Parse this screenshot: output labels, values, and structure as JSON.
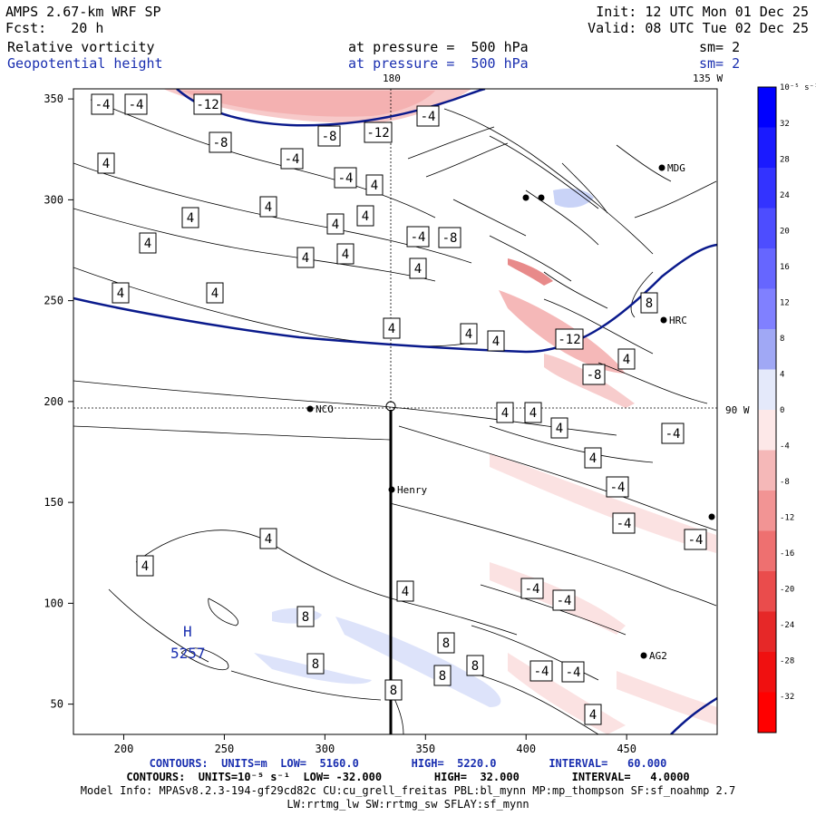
{
  "header": {
    "model_line": "AMPS 2.67-km WRF SP",
    "fcst_line": "Fcst:   20 h",
    "init_line": "Init: 12 UTC Mon 01 Dec 25",
    "valid_line": "Valid: 08 UTC Tue 02 Dec 25",
    "field1": "Relative vorticity",
    "field1_level": "at pressure =  500 hPa",
    "field1_sm": "sm= 2",
    "field2": "Geopotential height",
    "field2_level": "at pressure =  500 hPa",
    "field2_sm": "sm= 2"
  },
  "map": {
    "lon_label_180": "180",
    "lon_label_135w": "135 W",
    "lat_label_90w": "90 W",
    "x_ticks": [
      "200",
      "250",
      "300",
      "350",
      "400",
      "450"
    ],
    "y_ticks": [
      "350",
      "300",
      "250",
      "200",
      "150",
      "100",
      "50"
    ],
    "stations": [
      "NCO",
      "Henry",
      "HRC",
      "AG2",
      "MDG"
    ],
    "high_label": "H",
    "high_value": "5257",
    "contour_labels": [
      "-4",
      "-4",
      "-12",
      "-8",
      "-8",
      "-12",
      "-4",
      "-4",
      "-4",
      "4",
      "4",
      "4",
      "4",
      "4",
      "4",
      "4",
      "-4",
      "-8",
      "4",
      "4",
      "4",
      "4",
      "4",
      "-12",
      "-8",
      "4",
      "4",
      "8",
      "4",
      "4",
      "-4",
      "4",
      "-4",
      "4",
      "-4",
      "-4",
      "4",
      "4",
      "8",
      "8",
      "8",
      "8",
      "8",
      "8",
      "4",
      "-4",
      "-4",
      "-4",
      "-4",
      "4",
      "4",
      "4"
    ],
    "crosshair_color": "#000000",
    "height_contour_color": "#0a1a8c"
  },
  "colorbar": {
    "unit": "10⁻⁵ s⁻¹",
    "ticks": [
      "32",
      "28",
      "24",
      "20",
      "16",
      "12",
      "8",
      "4",
      "0",
      "-4",
      "-8",
      "-12",
      "-16",
      "-20",
      "-24",
      "-28",
      "-32"
    ],
    "top_color": "#0000ff",
    "bottom_color": "#ff0000"
  },
  "footer": {
    "contours1": "CONTOURS:  UNITS=m  LOW=  5160.0        HIGH=  5220.0        INTERVAL=   60.000",
    "contours2": "CONTOURS:  UNITS=10⁻⁵ s⁻¹  LOW= -32.000        HIGH=  32.000        INTERVAL=   4.0000",
    "model_info": "Model Info: MPASv8.2.3-194-gf29cd82c CU:cu_grell_freitas PBL:bl_mynn MP:mp_thompson SF:sf_noahmp 2.7",
    "model_info2": "LW:rrtmg_lw SW:rrtmg_sw SFLAY:sf_mynn"
  }
}
